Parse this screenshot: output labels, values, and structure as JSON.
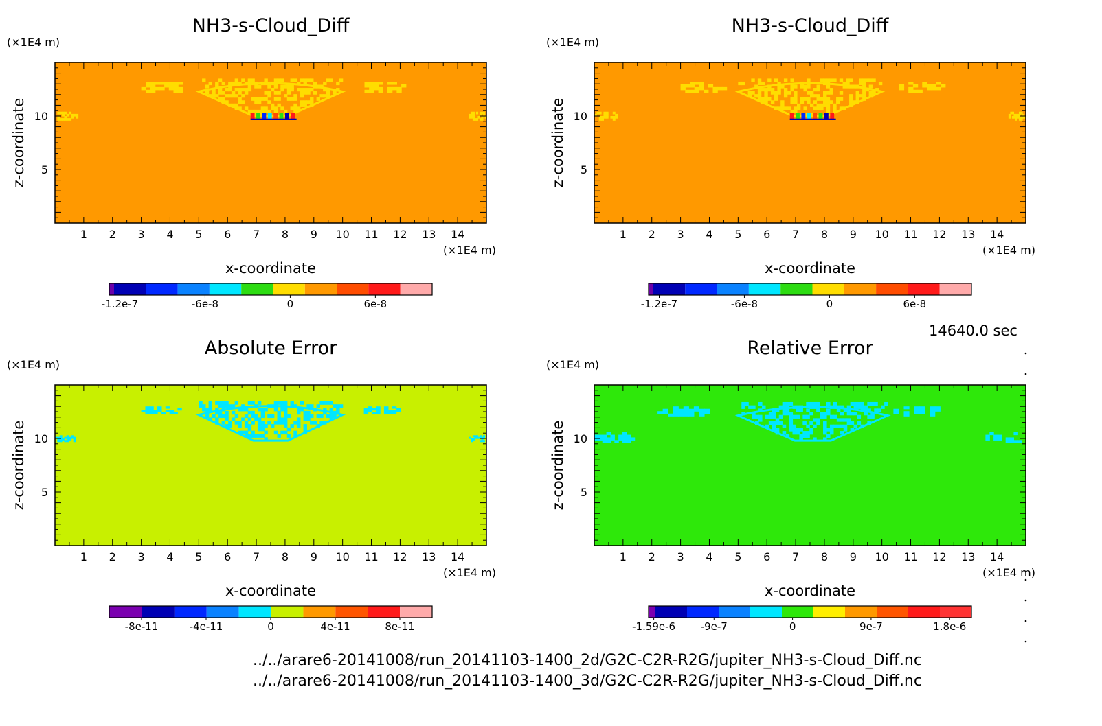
{
  "chart_data": [
    {
      "type": "heatmap",
      "title": "NH3-s-Cloud_Diff",
      "xlabel": "x-coordinate",
      "ylabel": "z-coordinate",
      "x_unit": "(×1E4 m)",
      "y_unit": "(×1E4 m)",
      "xlim": [
        0,
        15
      ],
      "ylim": [
        0,
        15
      ],
      "x_ticks": [
        "1",
        "2",
        "3",
        "4",
        "5",
        "6",
        "7",
        "8",
        "9",
        "10",
        "11",
        "12",
        "13",
        "14"
      ],
      "y_ticks": [
        "5",
        "10"
      ],
      "background_color": "#ff9900",
      "anvil_color": "#ffdd00",
      "colorbar": {
        "colors": [
          "#6a00a8",
          "#0000b4",
          "#0028ff",
          "#0a82ff",
          "#00e6ff",
          "#2ddc12",
          "#ffdd00",
          "#ff9900",
          "#ff4d00",
          "#ff1a1a",
          "#ffaaaa"
        ],
        "tick_labels": [
          "-1.2e-7",
          "-6e-8",
          "0",
          "6e-8"
        ],
        "tick_values": [
          -1.2e-07,
          -6e-08,
          0,
          6e-08
        ],
        "range": [
          -1.275e-07,
          1e-07
        ]
      },
      "features": [
        {
          "kind": "cloud-anvil",
          "x_center": 7.5,
          "z_center": 12,
          "x_range": [
            5,
            10
          ],
          "z_range": [
            10,
            13.5
          ]
        },
        {
          "kind": "cloud-patch",
          "x_range": [
            3,
            4.6
          ],
          "z_range": [
            12.2,
            13.2
          ]
        },
        {
          "kind": "cloud-patch",
          "x_range": [
            10.6,
            12.2
          ],
          "z_range": [
            12.2,
            13.2
          ]
        },
        {
          "kind": "edge-patch",
          "x_range": [
            0,
            0.8
          ],
          "z_range": [
            9.6,
            10.4
          ]
        },
        {
          "kind": "edge-patch",
          "x_range": [
            14.4,
            15
          ],
          "z_range": [
            9.6,
            10.4
          ]
        },
        {
          "kind": "convective-core",
          "x_range": [
            6.8,
            8.4
          ],
          "z_range": [
            9.4,
            10.6
          ]
        }
      ]
    },
    {
      "type": "heatmap",
      "title": "NH3-s-Cloud_Diff",
      "xlabel": "x-coordinate",
      "ylabel": "z-coordinate",
      "x_unit": "(×1E4 m)",
      "y_unit": "(×1E4 m)",
      "xlim": [
        0,
        15
      ],
      "ylim": [
        0,
        15
      ],
      "x_ticks": [
        "1",
        "2",
        "3",
        "4",
        "5",
        "6",
        "7",
        "8",
        "9",
        "10",
        "11",
        "12",
        "13",
        "14"
      ],
      "y_ticks": [
        "5",
        "10"
      ],
      "background_color": "#ff9900",
      "anvil_color": "#ffdd00",
      "colorbar": {
        "colors": [
          "#6a00a8",
          "#0000b4",
          "#0028ff",
          "#0a82ff",
          "#00e6ff",
          "#2ddc12",
          "#ffdd00",
          "#ff9900",
          "#ff4d00",
          "#ff1a1a",
          "#ffaaaa"
        ],
        "tick_labels": [
          "-1.2e-7",
          "-6e-8",
          "0",
          "6e-8"
        ],
        "tick_values": [
          -1.2e-07,
          -6e-08,
          0,
          6e-08
        ],
        "range": [
          -1.275e-07,
          1e-07
        ]
      },
      "features": [
        {
          "kind": "cloud-anvil",
          "x_center": 7.5,
          "z_center": 12,
          "x_range": [
            5,
            10
          ],
          "z_range": [
            10,
            13.5
          ]
        },
        {
          "kind": "cloud-patch",
          "x_range": [
            3,
            4.6
          ],
          "z_range": [
            12.2,
            13.2
          ]
        },
        {
          "kind": "cloud-patch",
          "x_range": [
            10.6,
            12.2
          ],
          "z_range": [
            12.2,
            13.2
          ]
        },
        {
          "kind": "edge-patch",
          "x_range": [
            0,
            0.8
          ],
          "z_range": [
            9.6,
            10.4
          ]
        },
        {
          "kind": "edge-patch",
          "x_range": [
            14.4,
            15
          ],
          "z_range": [
            9.6,
            10.4
          ]
        },
        {
          "kind": "convective-core",
          "x_range": [
            6.8,
            8.4
          ],
          "z_range": [
            9.4,
            10.6
          ]
        }
      ]
    },
    {
      "type": "heatmap",
      "title": "Absolute Error",
      "xlabel": "x-coordinate",
      "ylabel": "z-coordinate",
      "x_unit": "(×1E4 m)",
      "y_unit": "(×1E4 m)",
      "xlim": [
        0,
        15
      ],
      "ylim": [
        0,
        15
      ],
      "x_ticks": [
        "1",
        "2",
        "3",
        "4",
        "5",
        "6",
        "7",
        "8",
        "9",
        "10",
        "11",
        "12",
        "13",
        "14"
      ],
      "y_ticks": [
        "5",
        "10"
      ],
      "background_color": "#c8f000",
      "anvil_color": "#00e6ff",
      "colorbar": {
        "colors": [
          "#7b00b0",
          "#0000b4",
          "#0028ff",
          "#0a82ff",
          "#00e6ff",
          "#c8f000",
          "#ff9900",
          "#ff5500",
          "#ff1a1a",
          "#ffaaaa"
        ],
        "tick_labels": [
          "-8e-11",
          "-4e-11",
          "0",
          "4e-11",
          "8e-11"
        ],
        "tick_values": [
          -8e-11,
          -4e-11,
          0,
          4e-11,
          8e-11
        ],
        "range": [
          -1e-10,
          1e-10
        ]
      },
      "features": [
        {
          "kind": "cloud-anvil",
          "x_center": 7.5,
          "z_center": 12,
          "x_range": [
            5,
            10
          ],
          "z_range": [
            9.8,
            13.5
          ]
        },
        {
          "kind": "cloud-patch",
          "x_range": [
            3,
            4.4
          ],
          "z_range": [
            12.3,
            13
          ]
        },
        {
          "kind": "cloud-patch",
          "x_range": [
            10.6,
            12
          ],
          "z_range": [
            12.3,
            13
          ]
        },
        {
          "kind": "edge-patch",
          "x_range": [
            0,
            0.8
          ],
          "z_range": [
            9.7,
            10.3
          ]
        },
        {
          "kind": "edge-patch",
          "x_range": [
            14.4,
            15
          ],
          "z_range": [
            9.7,
            10.3
          ]
        }
      ]
    },
    {
      "type": "heatmap",
      "title": "Relative Error",
      "xlabel": "x-coordinate",
      "ylabel": "z-coordinate",
      "x_unit": "(×1E4 m)",
      "y_unit": "(×1E4 m)",
      "xlim": [
        0,
        15
      ],
      "ylim": [
        0,
        15
      ],
      "x_ticks": [
        "1",
        "2",
        "3",
        "4",
        "5",
        "6",
        "7",
        "8",
        "9",
        "10",
        "11",
        "12",
        "13",
        "14"
      ],
      "y_ticks": [
        "5",
        "10"
      ],
      "background_color": "#2ee80a",
      "anvil_color": "#00e6ff",
      "colorbar": {
        "colors": [
          "#7b00b0",
          "#0000b4",
          "#0028ff",
          "#0a82ff",
          "#00e6ff",
          "#2ee80a",
          "#ffee00",
          "#ff9900",
          "#ff5500",
          "#ff1a1a",
          "#ff3333"
        ],
        "tick_labels": [
          "-1.59e-6",
          "-9e-7",
          "0",
          "9e-7",
          "1.8e-6"
        ],
        "tick_values": [
          -1.59e-06,
          -9e-07,
          0,
          9e-07,
          1.8e-06
        ],
        "range": [
          -1.65e-06,
          2.05e-06
        ]
      },
      "features": [
        {
          "kind": "cloud-anvil",
          "x_center": 7.5,
          "z_center": 11.8,
          "x_range": [
            5,
            10.2
          ],
          "z_range": [
            9.8,
            13.4
          ]
        },
        {
          "kind": "cloud-patch",
          "x_range": [
            2.2,
            4
          ],
          "z_range": [
            12.1,
            13
          ]
        },
        {
          "kind": "cloud-patch",
          "x_range": [
            10.4,
            12.2
          ],
          "z_range": [
            12.1,
            13
          ]
        },
        {
          "kind": "edge-patch",
          "x_range": [
            0,
            1.4
          ],
          "z_range": [
            9.6,
            10.6
          ]
        },
        {
          "kind": "edge-patch",
          "x_range": [
            13.6,
            15
          ],
          "z_range": [
            9.6,
            10.6
          ]
        }
      ]
    }
  ],
  "time_label": "14640.0 sec",
  "file_paths": [
    "../../arare6-20141008/run_20141103-1400_2d/G2C-C2R-R2G/jupiter_NH3-s-Cloud_Diff.nc",
    "../../arare6-20141008/run_20141103-1400_3d/G2C-C2R-R2G/jupiter_NH3-s-Cloud_Diff.nc"
  ]
}
